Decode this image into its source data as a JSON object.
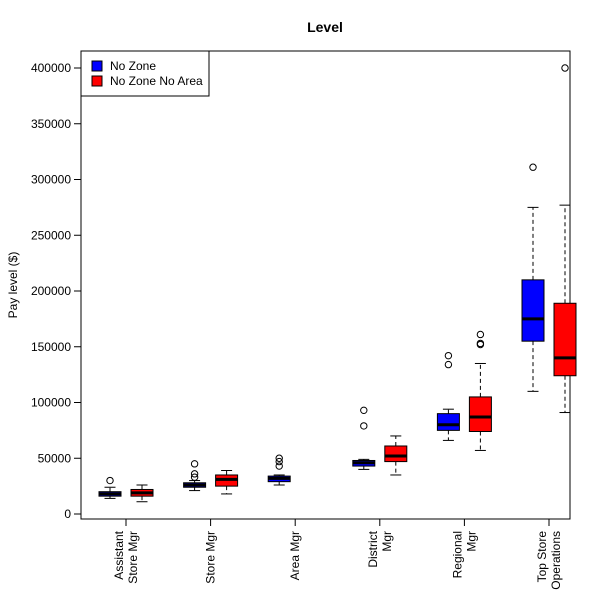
{
  "chart_data": {
    "type": "boxplot",
    "title": "Level",
    "xlabel": "",
    "ylabel": "Pay level ($)",
    "ylim": [
      0,
      420000
    ],
    "yticks": [
      0,
      50000,
      100000,
      150000,
      200000,
      250000,
      300000,
      350000,
      400000
    ],
    "ytick_labels": [
      "0",
      "50000",
      "100000",
      "150000",
      "200000",
      "250000",
      "300000",
      "350000",
      "400000"
    ],
    "categories": [
      [
        "Assistant",
        "Store Mgr"
      ],
      [
        "Store Mgr"
      ],
      [
        "Area Mgr"
      ],
      [
        "District",
        "Mgr"
      ],
      [
        "Regional",
        "Mgr"
      ],
      [
        "Top Store",
        "Operations"
      ]
    ],
    "legend": {
      "position": "top-left"
    },
    "series": [
      {
        "name": "No Zone",
        "color": "#0000FF",
        "boxes": [
          {
            "min": 14000,
            "q1": 16000,
            "median": 18000,
            "q3": 20000,
            "max": 24000,
            "outliers": [
              30000
            ]
          },
          {
            "min": 21000,
            "q1": 24000,
            "median": 26000,
            "q3": 28000,
            "max": 30000,
            "outliers": [
              33000,
              36000,
              45000
            ]
          },
          {
            "min": 26000,
            "q1": 29000,
            "median": 32000,
            "q3": 34000,
            "max": 35000,
            "outliers": [
              43000,
              47000,
              50000
            ]
          },
          {
            "min": 40000,
            "q1": 43000,
            "median": 46000,
            "q3": 48000,
            "max": 49000,
            "outliers": [
              79000,
              93000
            ]
          },
          {
            "min": 66000,
            "q1": 75000,
            "median": 80000,
            "q3": 90000,
            "max": 94000,
            "outliers": [
              134000,
              142000
            ]
          },
          {
            "min": 110000,
            "q1": 155000,
            "median": 175000,
            "q3": 210000,
            "max": 275000,
            "outliers": [
              311000
            ]
          }
        ]
      },
      {
        "name": "No Zone No Area",
        "color": "#FF0000",
        "boxes": [
          {
            "min": 11000,
            "q1": 16000,
            "median": 19000,
            "q3": 22000,
            "max": 26000,
            "outliers": []
          },
          {
            "min": 18000,
            "q1": 25000,
            "median": 31000,
            "q3": 35000,
            "max": 39000,
            "outliers": []
          },
          null,
          {
            "min": 35000,
            "q1": 47000,
            "median": 52000,
            "q3": 61000,
            "max": 70000,
            "outliers": []
          },
          {
            "min": 57000,
            "q1": 74000,
            "median": 87000,
            "q3": 105000,
            "max": 135000,
            "outliers": [
              152000,
              153000,
              161000
            ]
          },
          {
            "min": 91000,
            "q1": 124000,
            "median": 140000,
            "q3": 189000,
            "max": 277000,
            "outliers": [
              400000
            ]
          }
        ]
      }
    ]
  }
}
